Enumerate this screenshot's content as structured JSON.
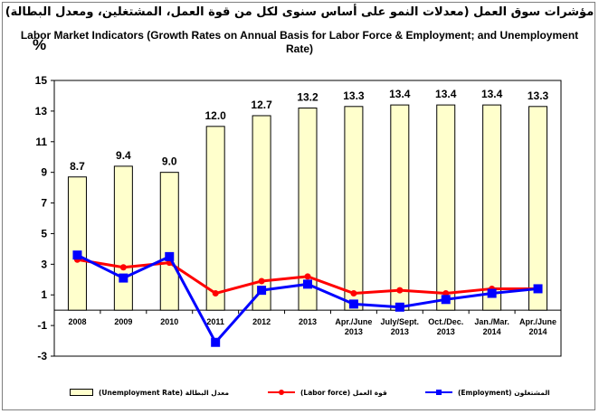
{
  "title_ar": "مؤشرات سوق العمل (معدلات النمو على أساس سنوى لكل من قوة العمل، المشتغلين، ومعدل البطالة)",
  "title_en": "Labor Market Indicators (Growth Rates on Annual Basis for Labor Force & Employment;  and Unemployment Rate)",
  "unit_label": "%",
  "chart_data": {
    "type": "bar+line",
    "categories": [
      [
        "2008"
      ],
      [
        "2009"
      ],
      [
        "2010"
      ],
      [
        "2011"
      ],
      [
        "2012"
      ],
      [
        "2013"
      ],
      [
        "Apr./June",
        "2013"
      ],
      [
        "July/Sept.",
        "2013"
      ],
      [
        "Oct./Dec.",
        "2013"
      ],
      [
        "Jan./Mar.",
        "2014"
      ],
      [
        "Apr./June",
        "2014"
      ]
    ],
    "ylim": [
      -3,
      15
    ],
    "yticks": [
      -3,
      -1,
      1,
      3,
      5,
      7,
      9,
      11,
      13,
      15
    ],
    "grid": false,
    "legend_position": "bottom",
    "series": [
      {
        "name": "(Unemployment Rate) معدل البطالة",
        "type": "bar",
        "color": "#ffffcc",
        "stroke": "#000000",
        "values": [
          8.7,
          9.4,
          9.0,
          12.0,
          12.7,
          13.2,
          13.3,
          13.4,
          13.4,
          13.4,
          13.3
        ],
        "data_labels": [
          "8.7",
          "9.4",
          "9.0",
          "12.0",
          "12.7",
          "13.2",
          "13.3",
          "13.4",
          "13.4",
          "13.4",
          "13.3"
        ]
      },
      {
        "name": "(Labor force) قوة العمل",
        "type": "line",
        "color": "#ff0000",
        "marker": "circle",
        "values": [
          3.3,
          2.8,
          3.1,
          1.1,
          1.9,
          2.2,
          1.1,
          1.3,
          1.1,
          1.4,
          1.4
        ]
      },
      {
        "name": "(Employment) المشتغلون",
        "type": "line",
        "color": "#0000ff",
        "marker": "square",
        "values": [
          3.6,
          2.1,
          3.5,
          -2.1,
          1.3,
          1.7,
          0.4,
          0.2,
          0.7,
          1.1,
          1.4
        ]
      }
    ]
  }
}
